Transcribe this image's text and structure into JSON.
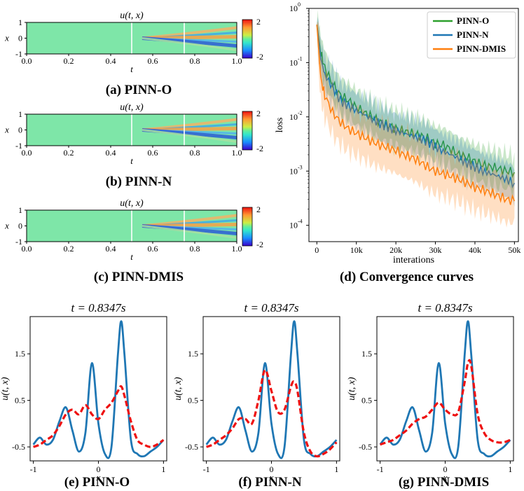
{
  "heatmaps": [
    {
      "id": "a",
      "title": "u(t, x)",
      "xlabel": "t",
      "ylabel": "x",
      "caption": "(a) PINN-O",
      "xticks": [
        "0.0",
        "0.2",
        "0.4",
        "0.6",
        "0.8",
        "1.0"
      ],
      "yticks": [
        "1",
        "0",
        "-1"
      ],
      "cbar_ticks": [
        "2",
        "-2"
      ],
      "vlines": [
        0.5,
        0.75
      ]
    },
    {
      "id": "b",
      "title": "u(t, x)",
      "xlabel": "t",
      "ylabel": "x",
      "caption": "(b) PINN-N",
      "xticks": [
        "0.0",
        "0.2",
        "0.4",
        "0.6",
        "0.8",
        "1.0"
      ],
      "yticks": [
        "1",
        "0",
        "-1"
      ],
      "cbar_ticks": [
        "2",
        "-2"
      ],
      "vlines": [
        0.5,
        0.75
      ]
    },
    {
      "id": "c",
      "title": "u(t, x)",
      "xlabel": "t",
      "ylabel": "x",
      "caption": "(c) PINN-DMIS",
      "xticks": [
        "0.0",
        "0.2",
        "0.4",
        "0.6",
        "0.8",
        "1.0"
      ],
      "yticks": [
        "1",
        "0",
        "-1"
      ],
      "cbar_ticks": [
        "2",
        "-2"
      ],
      "vlines": [
        0.5,
        0.75
      ]
    }
  ],
  "convergence": {
    "caption": "(d) Convergence curves",
    "xlabel": "interations",
    "ylabel": "loss",
    "xticks": [
      "0",
      "10k",
      "20k",
      "30k",
      "40k",
      "50k"
    ],
    "yticks": [
      "10",
      "10",
      "10",
      "10",
      "10"
    ],
    "ytick_exps": [
      "0",
      "-1",
      "-2",
      "-3",
      "-4"
    ],
    "legend": [
      "PINN-O",
      "PINN-N",
      "PINN-DMIS"
    ],
    "colors": {
      "PINN-O": "#2ca02c",
      "PINN-N": "#1f77b4",
      "PINN-DMIS": "#ff7f0e"
    }
  },
  "profiles": [
    {
      "id": "e",
      "title": "t = 0.8347s",
      "caption": "(e) PINN-O"
    },
    {
      "id": "f",
      "title": "t = 0.8347s",
      "caption": "(f) PINN-N"
    },
    {
      "id": "g",
      "title": "t = 0.8347s",
      "caption": "(g) PINN-DMIS"
    }
  ],
  "profile_axes": {
    "xlabel": "x",
    "ylabel": "u(t, x)",
    "xticks": [
      "-1",
      "0",
      "1"
    ],
    "yticks": [
      "1.5",
      "0.5",
      "-0.5"
    ]
  },
  "chart_data": [
    {
      "type": "heatmap",
      "panel": "a",
      "title": "u(t, x)",
      "xlabel": "t",
      "ylabel": "x",
      "xlim": [
        0,
        1
      ],
      "ylim": [
        -1,
        1
      ],
      "colorbar_range": [
        -2,
        2
      ]
    },
    {
      "type": "heatmap",
      "panel": "b",
      "title": "u(t, x)",
      "xlabel": "t",
      "ylabel": "x",
      "xlim": [
        0,
        1
      ],
      "ylim": [
        -1,
        1
      ],
      "colorbar_range": [
        -2,
        2
      ]
    },
    {
      "type": "heatmap",
      "panel": "c",
      "title": "u(t, x)",
      "xlabel": "t",
      "ylabel": "x",
      "xlim": [
        0,
        1
      ],
      "ylim": [
        -1,
        1
      ],
      "colorbar_range": [
        -2,
        2
      ]
    },
    {
      "type": "line",
      "panel": "d",
      "xlabel": "interations",
      "ylabel": "loss",
      "yscale": "log",
      "xlim": [
        -2000,
        51000
      ],
      "ylim": [
        5e-05,
        1
      ],
      "legend": "top-right",
      "x": [
        0,
        1000,
        2000,
        4000,
        6000,
        8000,
        10000,
        12000,
        14000,
        16000,
        18000,
        20000,
        22000,
        24000,
        26000,
        28000,
        30000,
        32000,
        34000,
        36000,
        38000,
        40000,
        42000,
        44000,
        46000,
        48000,
        50000
      ],
      "series": [
        {
          "name": "PINN-O",
          "values": [
            0.5,
            0.15,
            0.08,
            0.04,
            0.025,
            0.02,
            0.015,
            0.012,
            0.01,
            0.008,
            0.007,
            0.006,
            0.0055,
            0.005,
            0.0045,
            0.004,
            0.0032,
            0.003,
            0.0025,
            0.002,
            0.0018,
            0.0015,
            0.0013,
            0.0012,
            0.0011,
            0.001,
            0.00095
          ]
        },
        {
          "name": "PINN-N",
          "values": [
            0.5,
            0.12,
            0.06,
            0.035,
            0.02,
            0.016,
            0.013,
            0.011,
            0.009,
            0.0075,
            0.0065,
            0.0055,
            0.005,
            0.0045,
            0.004,
            0.0035,
            0.0028,
            0.0023,
            0.002,
            0.0017,
            0.0014,
            0.0012,
            0.001,
            0.0009,
            0.0008,
            0.0007,
            0.0006
          ]
        },
        {
          "name": "PINN-DMIS",
          "values": [
            0.5,
            0.05,
            0.025,
            0.012,
            0.008,
            0.006,
            0.005,
            0.0042,
            0.0035,
            0.003,
            0.0027,
            0.0024,
            0.002,
            0.0018,
            0.0015,
            0.0012,
            0.001,
            0.0009,
            0.0008,
            0.0007,
            0.0006,
            0.0005,
            0.00045,
            0.0004,
            0.00035,
            0.0003,
            0.00028
          ]
        }
      ]
    },
    {
      "type": "line",
      "panel": "e",
      "title": "t = 0.8347s",
      "xlabel": "x",
      "ylabel": "u(t, x)",
      "xlim": [
        -1.05,
        1.05
      ],
      "ylim": [
        -0.8,
        2.3
      ],
      "x": [
        -1,
        -0.9,
        -0.8,
        -0.7,
        -0.6,
        -0.5,
        -0.4,
        -0.3,
        -0.2,
        -0.1,
        0,
        0.1,
        0.2,
        0.3,
        0.35,
        0.4,
        0.5,
        0.6,
        0.7,
        0.8,
        0.9,
        1
      ],
      "series": [
        {
          "name": "",
          "values": [
            -0.45,
            -0.3,
            -0.45,
            -0.35,
            0.05,
            0.35,
            -0.15,
            -0.6,
            -0.2,
            1.3,
            0.0,
            -0.65,
            -0.5,
            1.5,
            2.2,
            1.5,
            -0.35,
            -0.65,
            -0.7,
            -0.6,
            -0.5,
            -0.35
          ]
        },
        {
          "name": "",
          "values": [
            -0.5,
            -0.45,
            -0.35,
            -0.25,
            -0.05,
            0.2,
            0.3,
            0.2,
            0.4,
            0.2,
            0.1,
            0.3,
            0.45,
            0.7,
            0.8,
            0.6,
            0.05,
            -0.35,
            -0.45,
            -0.5,
            -0.45,
            -0.35
          ]
        }
      ]
    },
    {
      "type": "line",
      "panel": "f",
      "title": "t = 0.8347s",
      "xlabel": "x",
      "ylabel": "u(t, x)",
      "xlim": [
        -1.05,
        1.05
      ],
      "ylim": [
        -0.8,
        2.3
      ],
      "x": [
        -1,
        -0.9,
        -0.8,
        -0.7,
        -0.6,
        -0.5,
        -0.4,
        -0.3,
        -0.2,
        -0.1,
        0,
        0.1,
        0.2,
        0.3,
        0.35,
        0.4,
        0.5,
        0.6,
        0.7,
        0.8,
        0.9,
        1
      ],
      "series": [
        {
          "name": "",
          "values": [
            -0.45,
            -0.3,
            -0.45,
            -0.35,
            0.05,
            0.35,
            -0.15,
            -0.6,
            -0.2,
            1.3,
            0.0,
            -0.65,
            -0.5,
            1.5,
            2.2,
            1.5,
            -0.35,
            -0.65,
            -0.7,
            -0.6,
            -0.5,
            -0.35
          ]
        },
        {
          "name": "",
          "values": [
            -0.5,
            -0.45,
            -0.35,
            -0.25,
            -0.1,
            0.1,
            0.1,
            0.0,
            0.5,
            1.15,
            0.7,
            0.25,
            0.3,
            0.8,
            0.9,
            0.7,
            -0.2,
            -0.6,
            -0.7,
            -0.65,
            -0.55,
            -0.4
          ]
        }
      ]
    },
    {
      "type": "line",
      "panel": "g",
      "title": "t = 0.8347s",
      "xlabel": "x",
      "ylabel": "u(t, x)",
      "xlim": [
        -1.05,
        1.05
      ],
      "ylim": [
        -0.8,
        2.3
      ],
      "x": [
        -1,
        -0.9,
        -0.8,
        -0.7,
        -0.6,
        -0.5,
        -0.4,
        -0.3,
        -0.2,
        -0.1,
        0,
        0.1,
        0.2,
        0.3,
        0.35,
        0.4,
        0.5,
        0.6,
        0.7,
        0.8,
        0.9,
        1
      ],
      "series": [
        {
          "name": "",
          "values": [
            -0.45,
            -0.3,
            -0.45,
            -0.35,
            0.05,
            0.35,
            -0.15,
            -0.6,
            -0.2,
            1.3,
            0.0,
            -0.65,
            -0.5,
            1.5,
            2.2,
            1.5,
            -0.35,
            -0.65,
            -0.7,
            -0.6,
            -0.5,
            -0.35
          ]
        },
        {
          "name": "",
          "values": [
            -0.45,
            -0.4,
            -0.35,
            -0.25,
            -0.15,
            0.0,
            0.1,
            0.15,
            0.3,
            0.45,
            0.3,
            0.2,
            0.25,
            0.9,
            1.3,
            1.25,
            0.2,
            -0.2,
            -0.35,
            -0.4,
            -0.4,
            -0.35
          ]
        }
      ]
    }
  ]
}
